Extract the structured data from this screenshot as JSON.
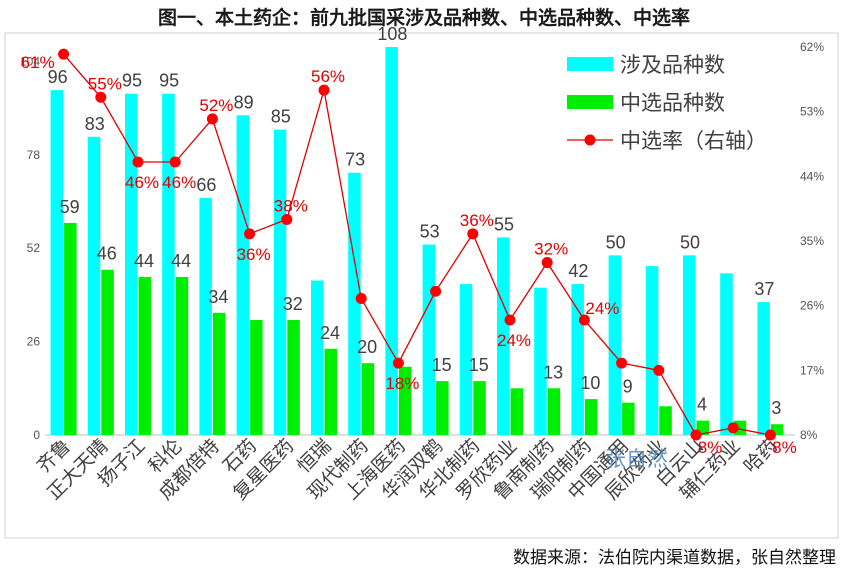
{
  "chart_data": {
    "type": "bar",
    "title": "图一、本土药企：前九批国采涉及品种数、中选品种数、中选率",
    "categories": [
      "齐鲁",
      "正大天晴",
      "扬子江",
      "科伦",
      "成都倍特",
      "石药",
      "复星医药",
      "恒瑞",
      "现代制药",
      "上海医药",
      "华润双鹤",
      "华北制药",
      "罗欣药业",
      "鲁南制药",
      "瑞阳制药",
      "中国通用",
      "辰欣药业",
      "白云山",
      "辅仁药业",
      "哈药"
    ],
    "series": [
      {
        "name": "涉及品种数",
        "axis": "left",
        "color": "#00FFFF",
        "values": [
          96,
          83,
          95,
          95,
          66,
          89,
          85,
          43,
          73,
          108,
          53,
          42,
          55,
          41,
          42,
          50,
          47,
          50,
          45,
          37
        ],
        "labels": [
          "96",
          "83",
          "95",
          "95",
          "66",
          "89",
          "85",
          "",
          "73",
          "108",
          "53",
          "",
          "55",
          "",
          "42",
          "50",
          "",
          "50",
          "",
          "37"
        ]
      },
      {
        "name": "中选品种数",
        "axis": "left",
        "color": "#00EE00",
        "values": [
          59,
          46,
          44,
          44,
          34,
          32,
          32,
          24,
          20,
          19,
          15,
          15,
          13,
          13,
          10,
          9,
          8,
          4,
          4,
          3
        ],
        "labels": [
          "59",
          "46",
          "44",
          "44",
          "34",
          "",
          "32",
          "24",
          "20",
          "",
          "15",
          "15",
          "",
          "13",
          "10",
          "9",
          "",
          "4",
          "",
          "3"
        ]
      },
      {
        "name": "中选率（右轴）",
        "axis": "right",
        "type": "line",
        "color": "#E00000",
        "values": [
          61,
          55,
          46,
          46,
          52,
          36,
          38,
          56,
          27,
          18,
          28,
          36,
          24,
          32,
          24,
          18,
          17,
          8,
          9,
          8
        ],
        "labels": [
          "61%",
          "55%",
          "46%",
          "46%",
          "52%",
          "36%",
          "38%",
          "56%",
          "",
          "18%",
          "",
          "36%",
          "24%",
          "32%",
          "24%",
          "",
          "",
          "8%",
          "",
          "8%"
        ]
      }
    ],
    "left_axis": {
      "ticks": [
        "0",
        "26",
        "52",
        "78",
        "104"
      ],
      "range": [
        0,
        108
      ]
    },
    "right_axis": {
      "ticks": [
        "8%",
        "17%",
        "26%",
        "35%",
        "44%",
        "53%",
        "62%"
      ],
      "range": [
        8,
        62
      ]
    },
    "legend": {
      "position": "top-right",
      "entries": [
        "涉及品种数",
        "中选品种数",
        "中选率（右轴）"
      ]
    },
    "watermark": "张自然",
    "source": "数据来源：法伯院内渠道数据，张自然整理"
  }
}
